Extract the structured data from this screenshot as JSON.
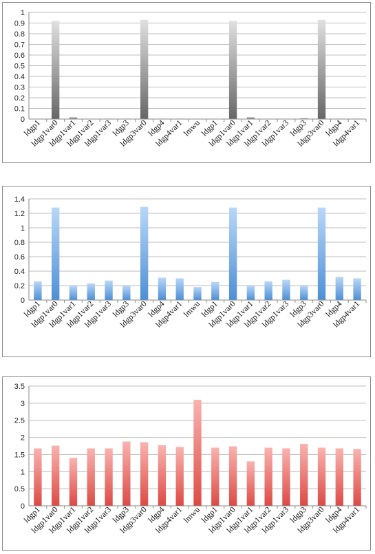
{
  "chart_data": [
    {
      "type": "bar",
      "categories": [
        "ldgp1",
        "ldgp1var0",
        "ldgp1var1",
        "ldgp1var2",
        "ldgp1var3",
        "ldgp3",
        "ldgp3var0",
        "ldgp4",
        "ldgp4var1",
        "lmwu",
        "ldgp1",
        "ldgp1var0",
        "ldgp1var1",
        "ldgp1var2",
        "ldgp1var3",
        "ldgp3",
        "ldgp3var0",
        "ldgp4",
        "ldgp4var1"
      ],
      "values": [
        0.0,
        0.92,
        0.02,
        0.0,
        0.005,
        0.005,
        0.93,
        0.005,
        0.005,
        0.0,
        0.0,
        0.92,
        0.02,
        0.0,
        0.0,
        0.01,
        0.93,
        0.005,
        0.005
      ],
      "ylim": [
        0,
        1
      ],
      "yticks": [
        0,
        0.1,
        0.2,
        0.3,
        0.4,
        0.5,
        0.6,
        0.7,
        0.8,
        0.9,
        1
      ],
      "grid": true,
      "colors": {
        "top": "#e0e0e0",
        "bottom": "#666666"
      }
    },
    {
      "type": "bar",
      "categories": [
        "ldgp1",
        "ldgp1var0",
        "ldgp1var1",
        "ldgp1var2",
        "ldgp1var3",
        "ldgp3",
        "ldgp3var0",
        "ldgp4",
        "ldgp4var1",
        "lmwu",
        "ldgp1",
        "ldgp1var0",
        "ldgp1var1",
        "ldgp1var2",
        "ldgp1var3",
        "ldgp3",
        "ldgp3var0",
        "ldgp4",
        "ldgp4var1"
      ],
      "values": [
        0.26,
        1.28,
        0.2,
        0.23,
        0.27,
        0.2,
        1.29,
        0.31,
        0.3,
        0.18,
        0.25,
        1.28,
        0.2,
        0.26,
        0.28,
        0.2,
        1.28,
        0.32,
        0.3
      ],
      "ylim": [
        0,
        1.4
      ],
      "yticks": [
        0,
        0.2,
        0.4,
        0.6,
        0.8,
        1,
        1.2,
        1.4
      ],
      "grid": true,
      "colors": {
        "top": "#b9d7f7",
        "bottom": "#4d8fd6"
      }
    },
    {
      "type": "bar",
      "categories": [
        "ldgp1",
        "ldgp1var0",
        "ldgp1var1",
        "ldgp1var2",
        "ldgp1var3",
        "ldgp3",
        "ldgp3var0",
        "ldgp4",
        "ldgp4var1",
        "lmwu",
        "ldgp1",
        "ldgp1var0",
        "ldgp1var1",
        "ldgp1var2",
        "ldgp1var3",
        "ldgp3",
        "ldgp3var0",
        "ldgp4",
        "ldgp4var1"
      ],
      "values": [
        1.68,
        1.76,
        1.4,
        1.68,
        1.68,
        1.88,
        1.86,
        1.77,
        1.72,
        3.1,
        1.7,
        1.74,
        1.3,
        1.7,
        1.68,
        1.81,
        1.7,
        1.68,
        1.66
      ],
      "ylim": [
        0,
        3.5
      ],
      "yticks": [
        0,
        0.5,
        1,
        1.5,
        2,
        2.5,
        3,
        3.5
      ],
      "grid": true,
      "colors": {
        "top": "#f9b3b0",
        "bottom": "#dd4a44"
      }
    }
  ]
}
